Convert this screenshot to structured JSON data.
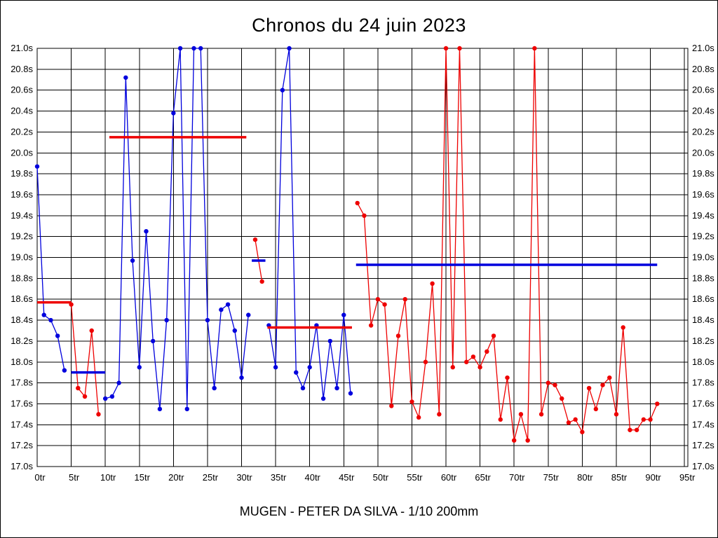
{
  "header": {
    "title": "Chronos du 24 juin 2023"
  },
  "footer": {
    "label": "MUGEN - PETER DA SILVA - 1/10 200mm"
  },
  "chart_data": {
    "type": "line",
    "title": "Chronos du 24 juin 2023",
    "subtitle": "MUGEN - PETER DA SILVA - 1/10 200mm",
    "x_unit": "tr",
    "y_unit": "s",
    "xlim": [
      0,
      95.5
    ],
    "ylim": [
      17.0,
      21.0
    ],
    "clip_at": 21.0,
    "grid": true,
    "colors": {
      "blue": "#0000dd",
      "red": "#ee0000",
      "grid": "#000000",
      "background": "#ffffff"
    },
    "y_ticks": [
      {
        "label": "21.0s",
        "value": 21.0
      },
      {
        "label": "20.8s",
        "value": 20.8
      },
      {
        "label": "20.6s",
        "value": 20.6
      },
      {
        "label": "20.4s",
        "value": 20.4
      },
      {
        "label": "20.2s",
        "value": 20.2
      },
      {
        "label": "20.0s",
        "value": 20.0
      },
      {
        "label": "19.8s",
        "value": 19.8
      },
      {
        "label": "19.6s",
        "value": 19.6
      },
      {
        "label": "19.4s",
        "value": 19.4
      },
      {
        "label": "19.2s",
        "value": 19.2
      },
      {
        "label": "19.0s",
        "value": 19.0
      },
      {
        "label": "18.8s",
        "value": 18.8
      },
      {
        "label": "18.6s",
        "value": 18.6
      },
      {
        "label": "18.4s",
        "value": 18.4
      },
      {
        "label": "18.2s",
        "value": 18.2
      },
      {
        "label": "18.0s",
        "value": 18.0
      },
      {
        "label": "17.8s",
        "value": 17.8
      },
      {
        "label": "17.6s",
        "value": 17.6
      },
      {
        "label": "17.4s",
        "value": 17.4
      },
      {
        "label": "17.2s",
        "value": 17.2
      },
      {
        "label": "17.0s",
        "value": 17.0
      }
    ],
    "x_ticks": [
      {
        "label": "0tr",
        "value": 0
      },
      {
        "label": "5tr",
        "value": 5
      },
      {
        "label": "10tr",
        "value": 10
      },
      {
        "label": "15tr",
        "value": 15
      },
      {
        "label": "20tr",
        "value": 20
      },
      {
        "label": "25tr",
        "value": 25
      },
      {
        "label": "30tr",
        "value": 30
      },
      {
        "label": "35tr",
        "value": 35
      },
      {
        "label": "40tr",
        "value": 40
      },
      {
        "label": "45tr",
        "value": 45
      },
      {
        "label": "50tr",
        "value": 50
      },
      {
        "label": "55tr",
        "value": 55
      },
      {
        "label": "60tr",
        "value": 60
      },
      {
        "label": "65tr",
        "value": 65
      },
      {
        "label": "70tr",
        "value": 70
      },
      {
        "label": "75tr",
        "value": 75
      },
      {
        "label": "80tr",
        "value": 80
      },
      {
        "label": "85tr",
        "value": 85
      },
      {
        "label": "90tr",
        "value": 90
      },
      {
        "label": "95tr",
        "value": 95
      }
    ],
    "segments": [
      {
        "name": "run-1",
        "color": "blue",
        "start_lap": 0,
        "values": [
          19.87,
          18.45,
          18.4,
          18.25,
          17.92
        ]
      },
      {
        "name": "run-2",
        "color": "red",
        "start_lap": 5,
        "values": [
          18.55,
          17.75,
          17.67,
          18.3,
          17.5
        ]
      },
      {
        "name": "run-3",
        "color": "blue",
        "start_lap": 10,
        "values": [
          17.65,
          17.67,
          17.8,
          20.72,
          18.97,
          17.95,
          19.25,
          18.2,
          17.55,
          18.4,
          20.38,
          21.0,
          17.55,
          21.0,
          21.0,
          18.4,
          17.75,
          18.5,
          18.55,
          18.3,
          17.85,
          18.45
        ]
      },
      {
        "name": "run-4",
        "color": "red",
        "start_lap": 32,
        "values": [
          19.17,
          18.77
        ]
      },
      {
        "name": "run-5",
        "color": "blue",
        "start_lap": 34,
        "values": [
          18.35,
          17.95,
          20.6,
          21.0,
          17.9,
          17.75,
          17.95,
          18.35,
          17.65,
          18.2,
          17.75,
          18.45,
          17.7
        ]
      },
      {
        "name": "run-6",
        "color": "red",
        "start_lap": 47,
        "values": [
          19.52,
          19.4,
          18.35,
          18.6,
          18.55,
          17.58,
          18.25,
          18.6,
          17.62,
          17.47,
          18.0,
          18.75,
          17.5,
          21.0,
          17.95,
          21.0,
          18.0,
          18.05,
          17.95,
          18.1,
          18.25,
          17.45,
          17.85,
          17.25,
          17.5,
          17.25,
          21.0,
          17.5,
          17.8,
          17.78,
          17.65,
          17.42,
          17.45,
          17.33,
          17.75,
          17.55,
          17.78,
          17.85,
          17.5,
          18.33,
          17.35,
          17.35,
          17.45,
          17.45,
          17.6
        ]
      }
    ],
    "average_lines": [
      {
        "name": "avg-run-1",
        "color": "red",
        "from": 0.0,
        "to": 5.0,
        "value": 18.57
      },
      {
        "name": "avg-run-2",
        "color": "blue",
        "from": 5.0,
        "to": 10.0,
        "value": 17.9
      },
      {
        "name": "avg-run-3",
        "color": "red",
        "from": 10.6,
        "to": 30.7,
        "value": 20.15
      },
      {
        "name": "avg-run-4",
        "color": "blue",
        "from": 31.5,
        "to": 33.5,
        "value": 18.97
      },
      {
        "name": "avg-run-5",
        "color": "red",
        "from": 33.8,
        "to": 46.2,
        "value": 18.33
      },
      {
        "name": "avg-run-6",
        "color": "blue",
        "from": 46.8,
        "to": 91.0,
        "value": 18.93
      }
    ]
  }
}
